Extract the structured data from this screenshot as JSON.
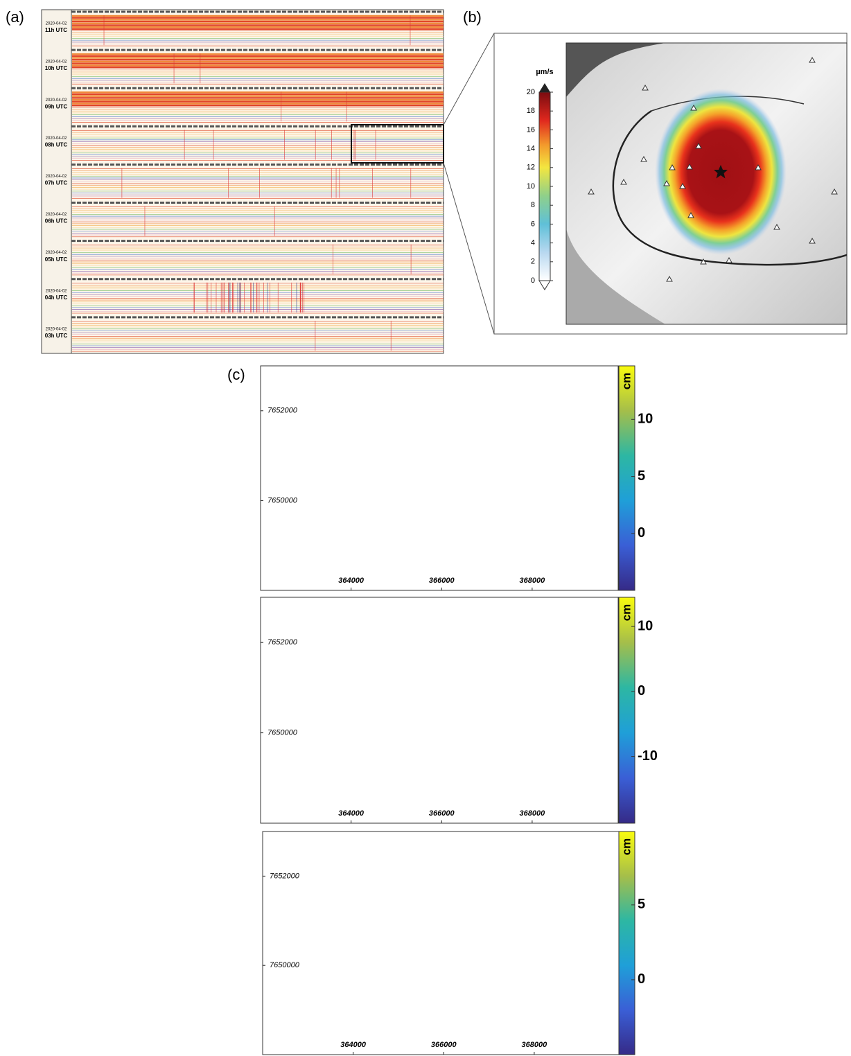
{
  "panel_a": {
    "label": "(a)",
    "rows": [
      {
        "date": "2020-04-02",
        "hour": "11h UTC"
      },
      {
        "date": "2020-04-02",
        "hour": "10h UTC"
      },
      {
        "date": "2020-04-02",
        "hour": "09h UTC"
      },
      {
        "date": "2020-04-02",
        "hour": "08h UTC"
      },
      {
        "date": "2020-04-02",
        "hour": "07h UTC"
      },
      {
        "date": "2020-04-02",
        "hour": "06h UTC"
      },
      {
        "date": "2020-04-02",
        "hour": "05h UTC"
      },
      {
        "date": "2020-04-02",
        "hour": "04h UTC"
      },
      {
        "date": "2020-04-02",
        "hour": "03h UTC"
      }
    ]
  },
  "panel_b": {
    "label": "(b)",
    "colorbar": {
      "unit": "µm/s",
      "lim": [
        0,
        20
      ],
      "ticks": [
        0,
        2,
        4,
        6,
        8,
        10,
        12,
        14,
        16,
        18,
        20
      ]
    }
  },
  "panel_c": {
    "label": "(c)",
    "maps": [
      {
        "xlim": [
          362000,
          369900
        ],
        "ylim": [
          7648000,
          7653000
        ],
        "xticks": [
          364000,
          366000,
          368000
        ],
        "yticks": [
          7650000,
          7652000
        ],
        "colorbar": {
          "unit": "cm",
          "lim": [
            -5,
            14.7
          ],
          "ticks": [
            0,
            5,
            10
          ]
        }
      },
      {
        "xlim": [
          362000,
          369900
        ],
        "ylim": [
          7648000,
          7653000
        ],
        "xticks": [
          364000,
          366000,
          368000
        ],
        "yticks": [
          7650000,
          7652000
        ],
        "colorbar": {
          "unit": "cm",
          "lim": [
            -20.3,
            14.5
          ],
          "ticks": [
            -10,
            0,
            10
          ]
        }
      },
      {
        "xlim": [
          362000,
          369900
        ],
        "ylim": [
          7648000,
          7653000
        ],
        "xticks": [
          364000,
          366000,
          368000
        ],
        "yticks": [
          7650000,
          7652000
        ],
        "colorbar": {
          "unit": "cm",
          "lim": [
            -5,
            9.9
          ],
          "ticks": [
            0,
            5
          ]
        }
      }
    ]
  }
}
